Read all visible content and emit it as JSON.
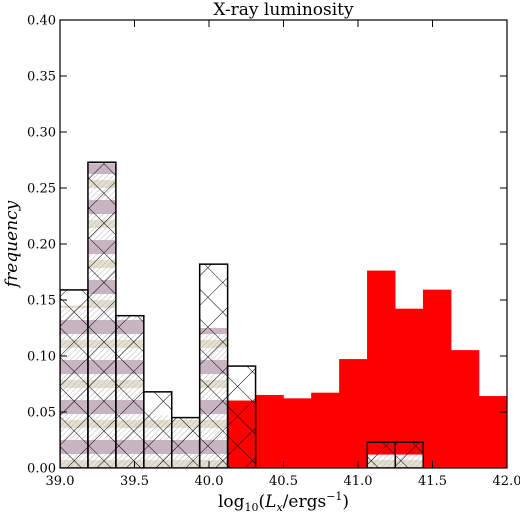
{
  "chart_data": {
    "type": "bar",
    "title": "X-ray luminosity",
    "xlabel_parts": [
      "log",
      "10",
      "(",
      "L",
      "x",
      "/ergs",
      "−1",
      ")"
    ],
    "ylabel": "frequency",
    "xlim": [
      39.0,
      42.0
    ],
    "ylim": [
      0.0,
      0.4
    ],
    "x_ticks": [
      "39.0",
      "39.5",
      "40.0",
      "40.5",
      "41.0",
      "41.5",
      "42.0"
    ],
    "x_tick_values": [
      39.0,
      39.5,
      40.0,
      40.5,
      41.0,
      41.5,
      42.0
    ],
    "y_ticks": [
      "0.00",
      "0.05",
      "0.10",
      "0.15",
      "0.20",
      "0.25",
      "0.30",
      "0.35",
      "0.40"
    ],
    "y_tick_values": [
      0.0,
      0.05,
      0.1,
      0.15,
      0.2,
      0.25,
      0.3,
      0.35,
      0.4
    ],
    "bin_width": 0.1875,
    "series": [
      {
        "style": "solid red",
        "color": "#ff0000",
        "bins": [
          {
            "x0": 39.0,
            "value": 0.003
          },
          {
            "x0": 39.75,
            "value": 0.01
          },
          {
            "x0": 40.125,
            "value": 0.06
          },
          {
            "x0": 40.3125,
            "value": 0.065
          },
          {
            "x0": 40.5,
            "value": 0.062
          },
          {
            "x0": 40.6875,
            "value": 0.067
          },
          {
            "x0": 40.875,
            "value": 0.097
          },
          {
            "x0": 41.0625,
            "value": 0.176
          },
          {
            "x0": 41.25,
            "value": 0.142
          },
          {
            "x0": 41.4375,
            "value": 0.159
          },
          {
            "x0": 41.625,
            "value": 0.105
          },
          {
            "x0": 41.8125,
            "value": 0.064
          }
        ]
      },
      {
        "style": "diagonal hatch with purple and beige bands",
        "color": "#b89ab0",
        "bins": [
          {
            "x0": 39.0,
            "value": 0.145
          },
          {
            "x0": 39.1875,
            "value": 0.272
          },
          {
            "x0": 39.375,
            "value": 0.136
          },
          {
            "x0": 39.5625,
            "value": 0.047
          },
          {
            "x0": 39.75,
            "value": 0.045
          },
          {
            "x0": 39.9375,
            "value": 0.125
          },
          {
            "x0": 41.0625,
            "value": 0.012
          },
          {
            "x0": 41.25,
            "value": 0.012
          }
        ]
      },
      {
        "style": "cross hatch outline",
        "color": "#000000",
        "bins": [
          {
            "x0": 39.0,
            "value": 0.159
          },
          {
            "x0": 39.1875,
            "value": 0.273
          },
          {
            "x0": 39.375,
            "value": 0.136
          },
          {
            "x0": 39.5625,
            "value": 0.068
          },
          {
            "x0": 39.75,
            "value": 0.045
          },
          {
            "x0": 39.9375,
            "value": 0.182
          },
          {
            "x0": 40.125,
            "value": 0.091
          },
          {
            "x0": 41.0625,
            "value": 0.023
          },
          {
            "x0": 41.25,
            "value": 0.023
          }
        ]
      }
    ],
    "grid": false,
    "legend": "none"
  }
}
